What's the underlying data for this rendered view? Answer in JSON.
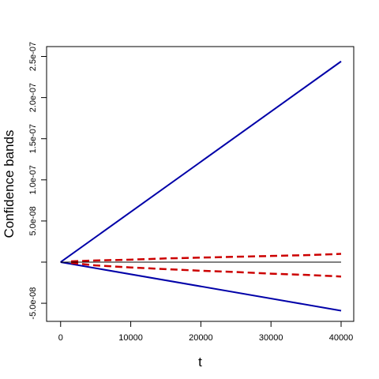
{
  "chart_data": {
    "type": "line",
    "title": "",
    "xlabel": "t",
    "ylabel": "Confidence bands",
    "xlim": [
      -2000,
      41800
    ],
    "ylim": [
      -7.2e-08,
      2.62e-07
    ],
    "grid": false,
    "x_ticks": [
      {
        "value": 0,
        "label": "0"
      },
      {
        "value": 10000,
        "label": "10000"
      },
      {
        "value": 20000,
        "label": "20000"
      },
      {
        "value": 30000,
        "label": "30000"
      },
      {
        "value": 40000,
        "label": "40000"
      }
    ],
    "y_ticks": [
      {
        "value": -5e-08,
        "label": "-5.0e-08"
      },
      {
        "value": 0,
        "label": ""
      },
      {
        "value": 5e-08,
        "label": "5.0e-08"
      },
      {
        "value": 1e-07,
        "label": "1.0e-07"
      },
      {
        "value": 1.5e-07,
        "label": "1.5e-07"
      },
      {
        "value": 2e-07,
        "label": "2.0e-07"
      },
      {
        "value": 2.5e-07,
        "label": "2.5e-07"
      }
    ],
    "series": [
      {
        "role": "upper-band",
        "color": "#0000a8",
        "style": "solid",
        "width": 2,
        "x": [
          0,
          40000
        ],
        "y": [
          0,
          2.44e-07
        ]
      },
      {
        "role": "lower-band",
        "color": "#0000a8",
        "style": "solid",
        "width": 2,
        "x": [
          0,
          40000
        ],
        "y": [
          0,
          -5.9e-08
        ]
      },
      {
        "role": "upper-dashed-band",
        "color": "#cc0000",
        "style": "dashed",
        "width": 2.5,
        "x": [
          1500,
          5000,
          10000,
          15000,
          20000,
          25000,
          30000,
          35000,
          40000
        ],
        "y": [
          1e-09,
          2e-09,
          3e-09,
          4.5e-09,
          5.5e-09,
          6.5e-09,
          7.5e-09,
          8.5e-09,
          1e-08
        ]
      },
      {
        "role": "lower-dashed-band",
        "color": "#cc0000",
        "style": "dashed",
        "width": 2.5,
        "x": [
          1500,
          5000,
          10000,
          15000,
          20000,
          25000,
          30000,
          35000,
          40000
        ],
        "y": [
          -1e-09,
          -4e-09,
          -6.5e-09,
          -8.5e-09,
          -1.05e-08,
          -1.2e-08,
          -1.4e-08,
          -1.55e-08,
          -1.75e-08
        ]
      },
      {
        "role": "zero-line",
        "color": "#000000",
        "style": "solid",
        "width": 1,
        "x": [
          0,
          40000
        ],
        "y": [
          0,
          0
        ]
      }
    ]
  }
}
